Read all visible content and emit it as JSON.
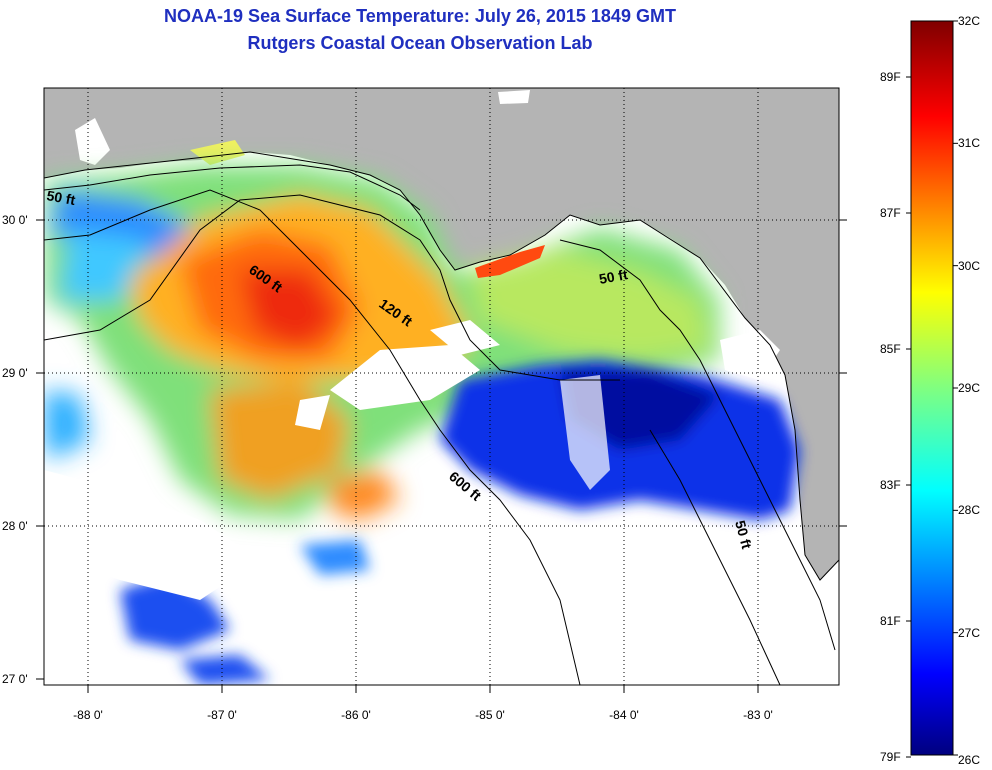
{
  "title_line1": "NOAA-19 Sea Surface Temperature:  July 26, 2015 1849 GMT",
  "title_line2": "Rutgers Coastal Ocean Observation Lab",
  "map": {
    "lat_labels": [
      "30 0'",
      "29 0'",
      "28 0'",
      "27 0'"
    ],
    "lon_labels": [
      "-88 0'",
      "-87 0'",
      "-86 0'",
      "-85 0'",
      "-84 0'",
      "-83 0'"
    ],
    "contour_labels": [
      "50 ft",
      "600 ft",
      "120 ft",
      "50 ft",
      "600 ft",
      "50 ft"
    ]
  },
  "colorbar": {
    "celsius_labels": [
      "32C",
      "31C",
      "30C",
      "29C",
      "28C",
      "27C",
      "26C"
    ],
    "fahrenheit_labels": [
      "89F",
      "87F",
      "85F",
      "83F",
      "81F",
      "79F"
    ],
    "min_c": 26,
    "max_c": 32
  },
  "colors": {
    "title": "#1f2fbf",
    "land": "#b4b4b4",
    "colormap": [
      "#00007f",
      "#0000ff",
      "#0080ff",
      "#00ffff",
      "#80ff80",
      "#ffff00",
      "#ff8000",
      "#ff0000",
      "#7f0000"
    ]
  }
}
